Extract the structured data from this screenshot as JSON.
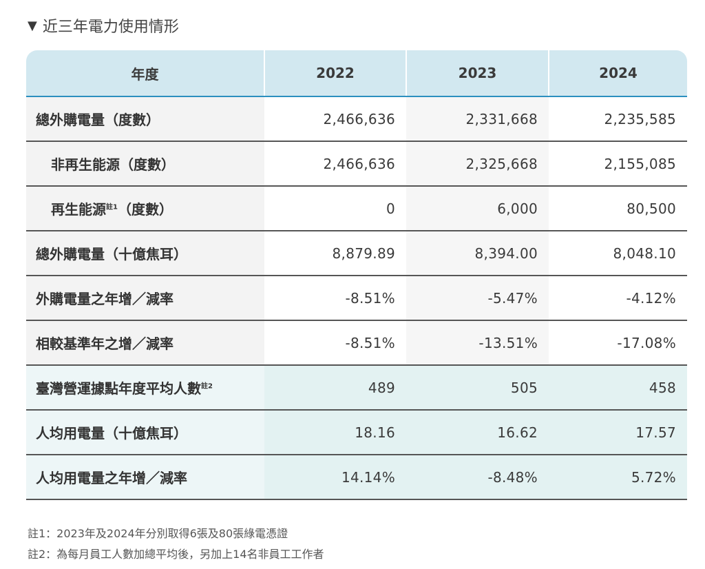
{
  "section": {
    "marker": "▼",
    "title": "近三年電力使用情形"
  },
  "table": {
    "headers": [
      "年度",
      "2022",
      "2023",
      "2024"
    ],
    "rows": [
      {
        "label": "總外購電量（度數）",
        "note": "",
        "values": [
          "2,466,636",
          "2,331,668",
          "2,235,585"
        ]
      },
      {
        "label": "非再生能源（度數）",
        "note": "",
        "values": [
          "2,466,636",
          "2,325,668",
          "2,155,085"
        ]
      },
      {
        "label": "再生能源",
        "note": "註1",
        "label_suffix": "（度數）",
        "values": [
          "0",
          "6,000",
          "80,500"
        ]
      },
      {
        "label": "總外購電量（十億焦耳）",
        "note": "",
        "values": [
          "8,879.89",
          "8,394.00",
          "8,048.10"
        ]
      },
      {
        "label": "外購電量之年增／減率",
        "note": "",
        "values": [
          "-8.51%",
          "-5.47%",
          "-4.12%"
        ]
      },
      {
        "label": "相較基準年之增／減率",
        "note": "",
        "values": [
          "-8.51%",
          "-13.51%",
          "-17.08%"
        ]
      },
      {
        "label": "臺灣營運據點年度平均人數",
        "note": "註2",
        "values": [
          "489",
          "505",
          "458"
        ]
      },
      {
        "label": "人均用電量（十億焦耳）",
        "note": "",
        "values": [
          "18.16",
          "16.62",
          "17.57"
        ]
      },
      {
        "label": "人均用電量之年增／減率",
        "note": "",
        "values": [
          "14.14%",
          "-8.48%",
          "5.72%"
        ]
      }
    ]
  },
  "notes": [
    "註1：2023年及2024年分別取得6張及80張綠電憑證",
    "註2：為每月員工人數加總平均後，另加上14名非員工工作者"
  ],
  "colors": {
    "header_bg": "#d2e8f0",
    "header_rule": "#2b8fbf",
    "teal_row_bg": "#e3f2f2",
    "label_bg": "#f3f3f3"
  }
}
